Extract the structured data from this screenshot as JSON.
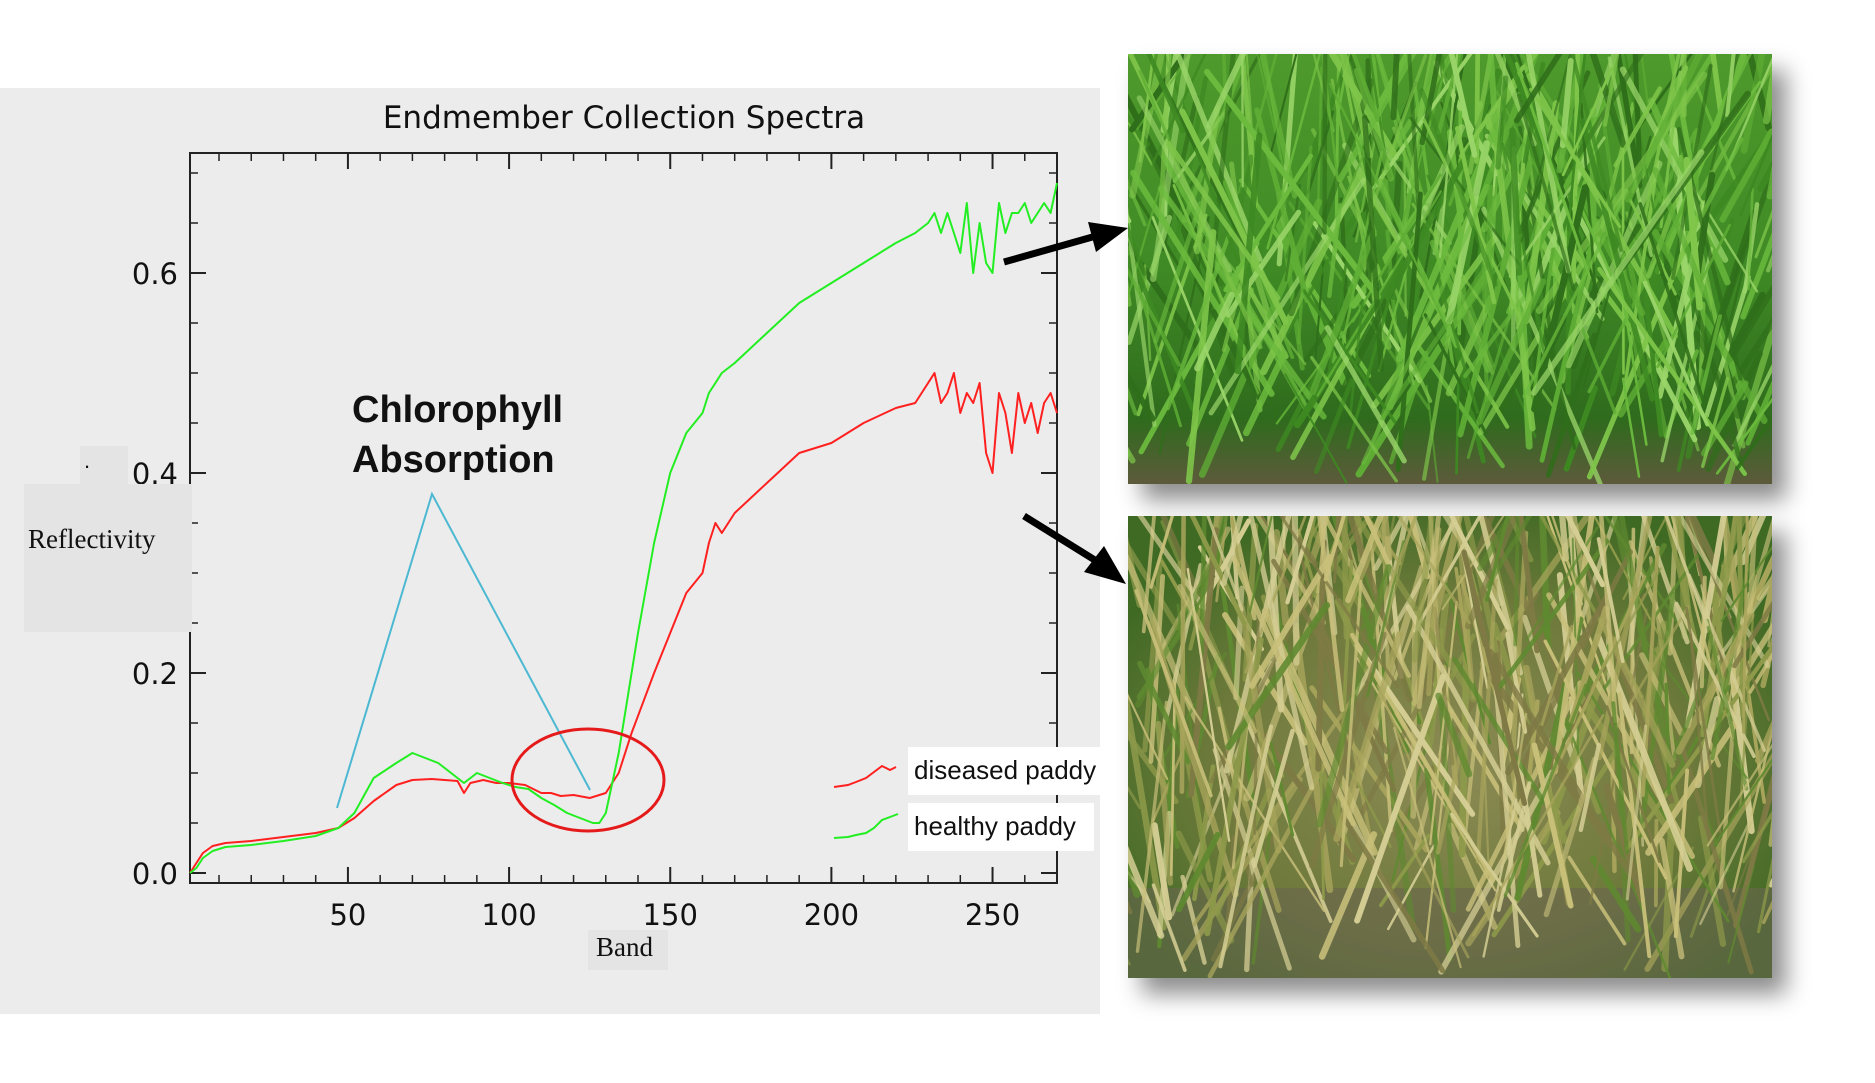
{
  "figure": {
    "annotation": [
      "Chlorophyll",
      "Absorption"
    ],
    "marker_dot": "."
  },
  "photos": [
    {
      "name": "healthy-paddy-photo",
      "subject": "healthy rice paddy"
    },
    {
      "name": "diseased-paddy-photo",
      "subject": "diseased rice paddy"
    }
  ],
  "chart_data": {
    "type": "line",
    "title": "Endmember Collection Spectra",
    "xlabel": "Band",
    "ylabel": "Reflectivity",
    "xlim": [
      1,
      270
    ],
    "ylim": [
      -0.01,
      0.72
    ],
    "xticks": [
      50,
      100,
      150,
      200,
      250
    ],
    "yticks": [
      0.0,
      0.2,
      0.4,
      0.6
    ],
    "ytick_labels": [
      "0.0",
      "0.2",
      "0.4",
      "0.6"
    ],
    "legend_position": "bottom-right",
    "series": [
      {
        "name": "diseased paddy",
        "color": "#ff2020",
        "x": [
          1,
          3,
          5,
          8,
          12,
          20,
          30,
          40,
          47,
          52,
          58,
          65,
          70,
          76,
          80,
          84,
          86,
          88,
          92,
          96,
          100,
          105,
          110,
          113,
          116,
          120,
          125,
          130,
          134,
          138,
          145,
          150,
          155,
          160,
          162,
          164,
          166,
          170,
          180,
          190,
          200,
          210,
          220,
          226,
          230,
          232,
          234,
          236,
          238,
          240,
          242,
          244,
          246,
          248,
          250,
          252,
          254,
          256,
          258,
          260,
          262,
          264,
          266,
          268,
          270
        ],
        "y": [
          0.0,
          0.01,
          0.02,
          0.027,
          0.03,
          0.032,
          0.036,
          0.04,
          0.045,
          0.055,
          0.072,
          0.088,
          0.093,
          0.094,
          0.093,
          0.092,
          0.08,
          0.09,
          0.093,
          0.09,
          0.09,
          0.088,
          0.08,
          0.08,
          0.077,
          0.078,
          0.075,
          0.08,
          0.1,
          0.14,
          0.2,
          0.24,
          0.28,
          0.3,
          0.33,
          0.35,
          0.34,
          0.36,
          0.39,
          0.42,
          0.43,
          0.45,
          0.465,
          0.47,
          0.49,
          0.5,
          0.47,
          0.48,
          0.5,
          0.46,
          0.48,
          0.47,
          0.49,
          0.42,
          0.4,
          0.48,
          0.46,
          0.42,
          0.48,
          0.45,
          0.47,
          0.44,
          0.47,
          0.48,
          0.46
        ]
      },
      {
        "name": "healthy paddy",
        "color": "#22ee22",
        "x": [
          1,
          3,
          5,
          8,
          12,
          20,
          30,
          40,
          47,
          52,
          58,
          65,
          70,
          74,
          78,
          82,
          86,
          90,
          94,
          98,
          102,
          106,
          110,
          114,
          118,
          122,
          126,
          128,
          130,
          134,
          140,
          145,
          150,
          155,
          160,
          162,
          164,
          166,
          170,
          180,
          190,
          200,
          210,
          220,
          226,
          230,
          232,
          234,
          236,
          238,
          240,
          242,
          244,
          246,
          248,
          250,
          252,
          254,
          256,
          258,
          260,
          262,
          264,
          266,
          268,
          270
        ],
        "y": [
          0.0,
          0.005,
          0.015,
          0.022,
          0.026,
          0.028,
          0.032,
          0.037,
          0.045,
          0.06,
          0.095,
          0.11,
          0.12,
          0.115,
          0.11,
          0.1,
          0.09,
          0.1,
          0.095,
          0.09,
          0.086,
          0.084,
          0.075,
          0.068,
          0.06,
          0.055,
          0.05,
          0.05,
          0.06,
          0.12,
          0.24,
          0.33,
          0.4,
          0.44,
          0.46,
          0.48,
          0.49,
          0.5,
          0.51,
          0.54,
          0.57,
          0.59,
          0.61,
          0.63,
          0.64,
          0.65,
          0.66,
          0.64,
          0.66,
          0.64,
          0.62,
          0.67,
          0.6,
          0.65,
          0.61,
          0.6,
          0.67,
          0.64,
          0.66,
          0.66,
          0.67,
          0.65,
          0.66,
          0.67,
          0.66,
          0.69
        ]
      }
    ]
  }
}
